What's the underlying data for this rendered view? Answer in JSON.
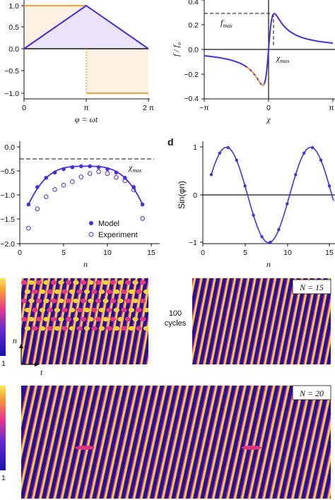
{
  "colors": {
    "primary": "#4b2fd6",
    "orange": "#f0a43a",
    "fill_purple": "#e9e4fb",
    "fill_orange": "#fdf1e4",
    "dashed_orange": "#f0a43a"
  },
  "chart_data": [
    {
      "type": "line",
      "panel": "top-left",
      "xlabel": "φ = ωt",
      "xticks": [
        "0",
        "π",
        "2 π"
      ],
      "yticks": [
        "1.0",
        "0.5",
        "0.0",
        "−0.5",
        "−1.0"
      ],
      "ylim": [
        -1.1,
        1.1
      ],
      "series": [
        {
          "values": [
            [
              0,
              0
            ],
            [
              3.1416,
              1
            ],
            [
              6.2832,
              0
            ]
          ]
        },
        {
          "values": [
            [
              0,
              1
            ],
            [
              3.1416,
              1
            ],
            [
              3.1416,
              -1
            ],
            [
              6.2832,
              -1
            ]
          ]
        }
      ]
    },
    {
      "type": "line",
      "panel": "top-right",
      "ylabel": "f / f₀",
      "xlabel": "χ",
      "xticks": [
        "−π",
        "0",
        "π"
      ],
      "yticks": [
        "0.4",
        "0.2",
        "0.0",
        "−0.2",
        "−0.4"
      ],
      "ylim": [
        -0.4,
        0.4
      ],
      "annotations": [
        "f_max",
        "χ_max"
      ],
      "f_max": 0.29,
      "chi_max": 0.28,
      "f_min": -0.29,
      "chi_min": -0.28
    },
    {
      "type": "scatter",
      "panel": "c",
      "xlabel": "n",
      "xticks": [
        "0",
        "5",
        "10",
        "15"
      ],
      "yticks": [
        "0.0",
        "−0.5",
        "−1.0",
        "−1.5",
        "−2.0"
      ],
      "ylim": [
        -2.0,
        0.0
      ],
      "annotation": "χ_max",
      "chi_max_line": -0.25,
      "legend": [
        "Model",
        "Experiment"
      ],
      "legend_position": "bottom-right",
      "series": [
        {
          "name": "Model",
          "x": [
            1,
            2,
            3,
            4,
            5,
            6,
            7,
            8,
            9,
            10,
            11,
            12,
            13,
            14
          ],
          "y": [
            -1.19,
            -0.83,
            -0.64,
            -0.53,
            -0.46,
            -0.42,
            -0.4,
            -0.4,
            -0.42,
            -0.46,
            -0.53,
            -0.64,
            -0.83,
            -1.19
          ]
        },
        {
          "name": "Experiment",
          "x": [
            1,
            2,
            3,
            4,
            5,
            6,
            7,
            8,
            9,
            10,
            11,
            12,
            13,
            14
          ],
          "y": [
            -1.68,
            -1.28,
            -1.03,
            -0.88,
            -0.79,
            -0.72,
            -0.62,
            -0.55,
            -0.51,
            -0.55,
            -0.63,
            -0.7,
            -0.89,
            -1.48
          ]
        }
      ]
    },
    {
      "type": "line",
      "panel": "d",
      "ylabel": "Sin(φn)",
      "xlabel": "n",
      "xticks": [
        "0",
        "5",
        "10",
        "15"
      ],
      "yticks": [
        "1",
        "0",
        "−1"
      ],
      "ylim": [
        -1,
        1
      ],
      "points_n": [
        1,
        2,
        3,
        4,
        5,
        6,
        7,
        8,
        9,
        10,
        11,
        12,
        13,
        14,
        15
      ],
      "phi": 0.6283
    },
    {
      "type": "heatmap",
      "panel": "e",
      "labels": [
        "100 cycles",
        "N = 15",
        "n",
        "t"
      ],
      "colorbar_bottom": "1"
    },
    {
      "type": "heatmap",
      "panel": "f",
      "labels": [
        "N = 20"
      ],
      "colorbar_bottom": "1"
    }
  ],
  "labels": {
    "panel_d_letter": "d",
    "legend_model": "Model",
    "legend_experiment": "Experiment",
    "cycles": "100",
    "cycles2": "cycles",
    "n15": "N = 15",
    "n20": "N = 20",
    "n_axis": "n",
    "t_axis": "t",
    "cbar_bottom_e": "1",
    "cbar_bottom_f": "1",
    "xlabel_a": "φ = ωt",
    "xlabel_b": "χ",
    "xlabel_c": "n",
    "xlabel_d": "n",
    "ylabel_b": "f / f",
    "ylabel_b_sub": "o",
    "ylabel_d": "Sin(φn)",
    "f_max": "f",
    "f_max_sub": "max",
    "chi_max": "χ",
    "chi_max_sub": "max",
    "chi_max_c": "χ",
    "chi_max_c_sub": "max"
  }
}
